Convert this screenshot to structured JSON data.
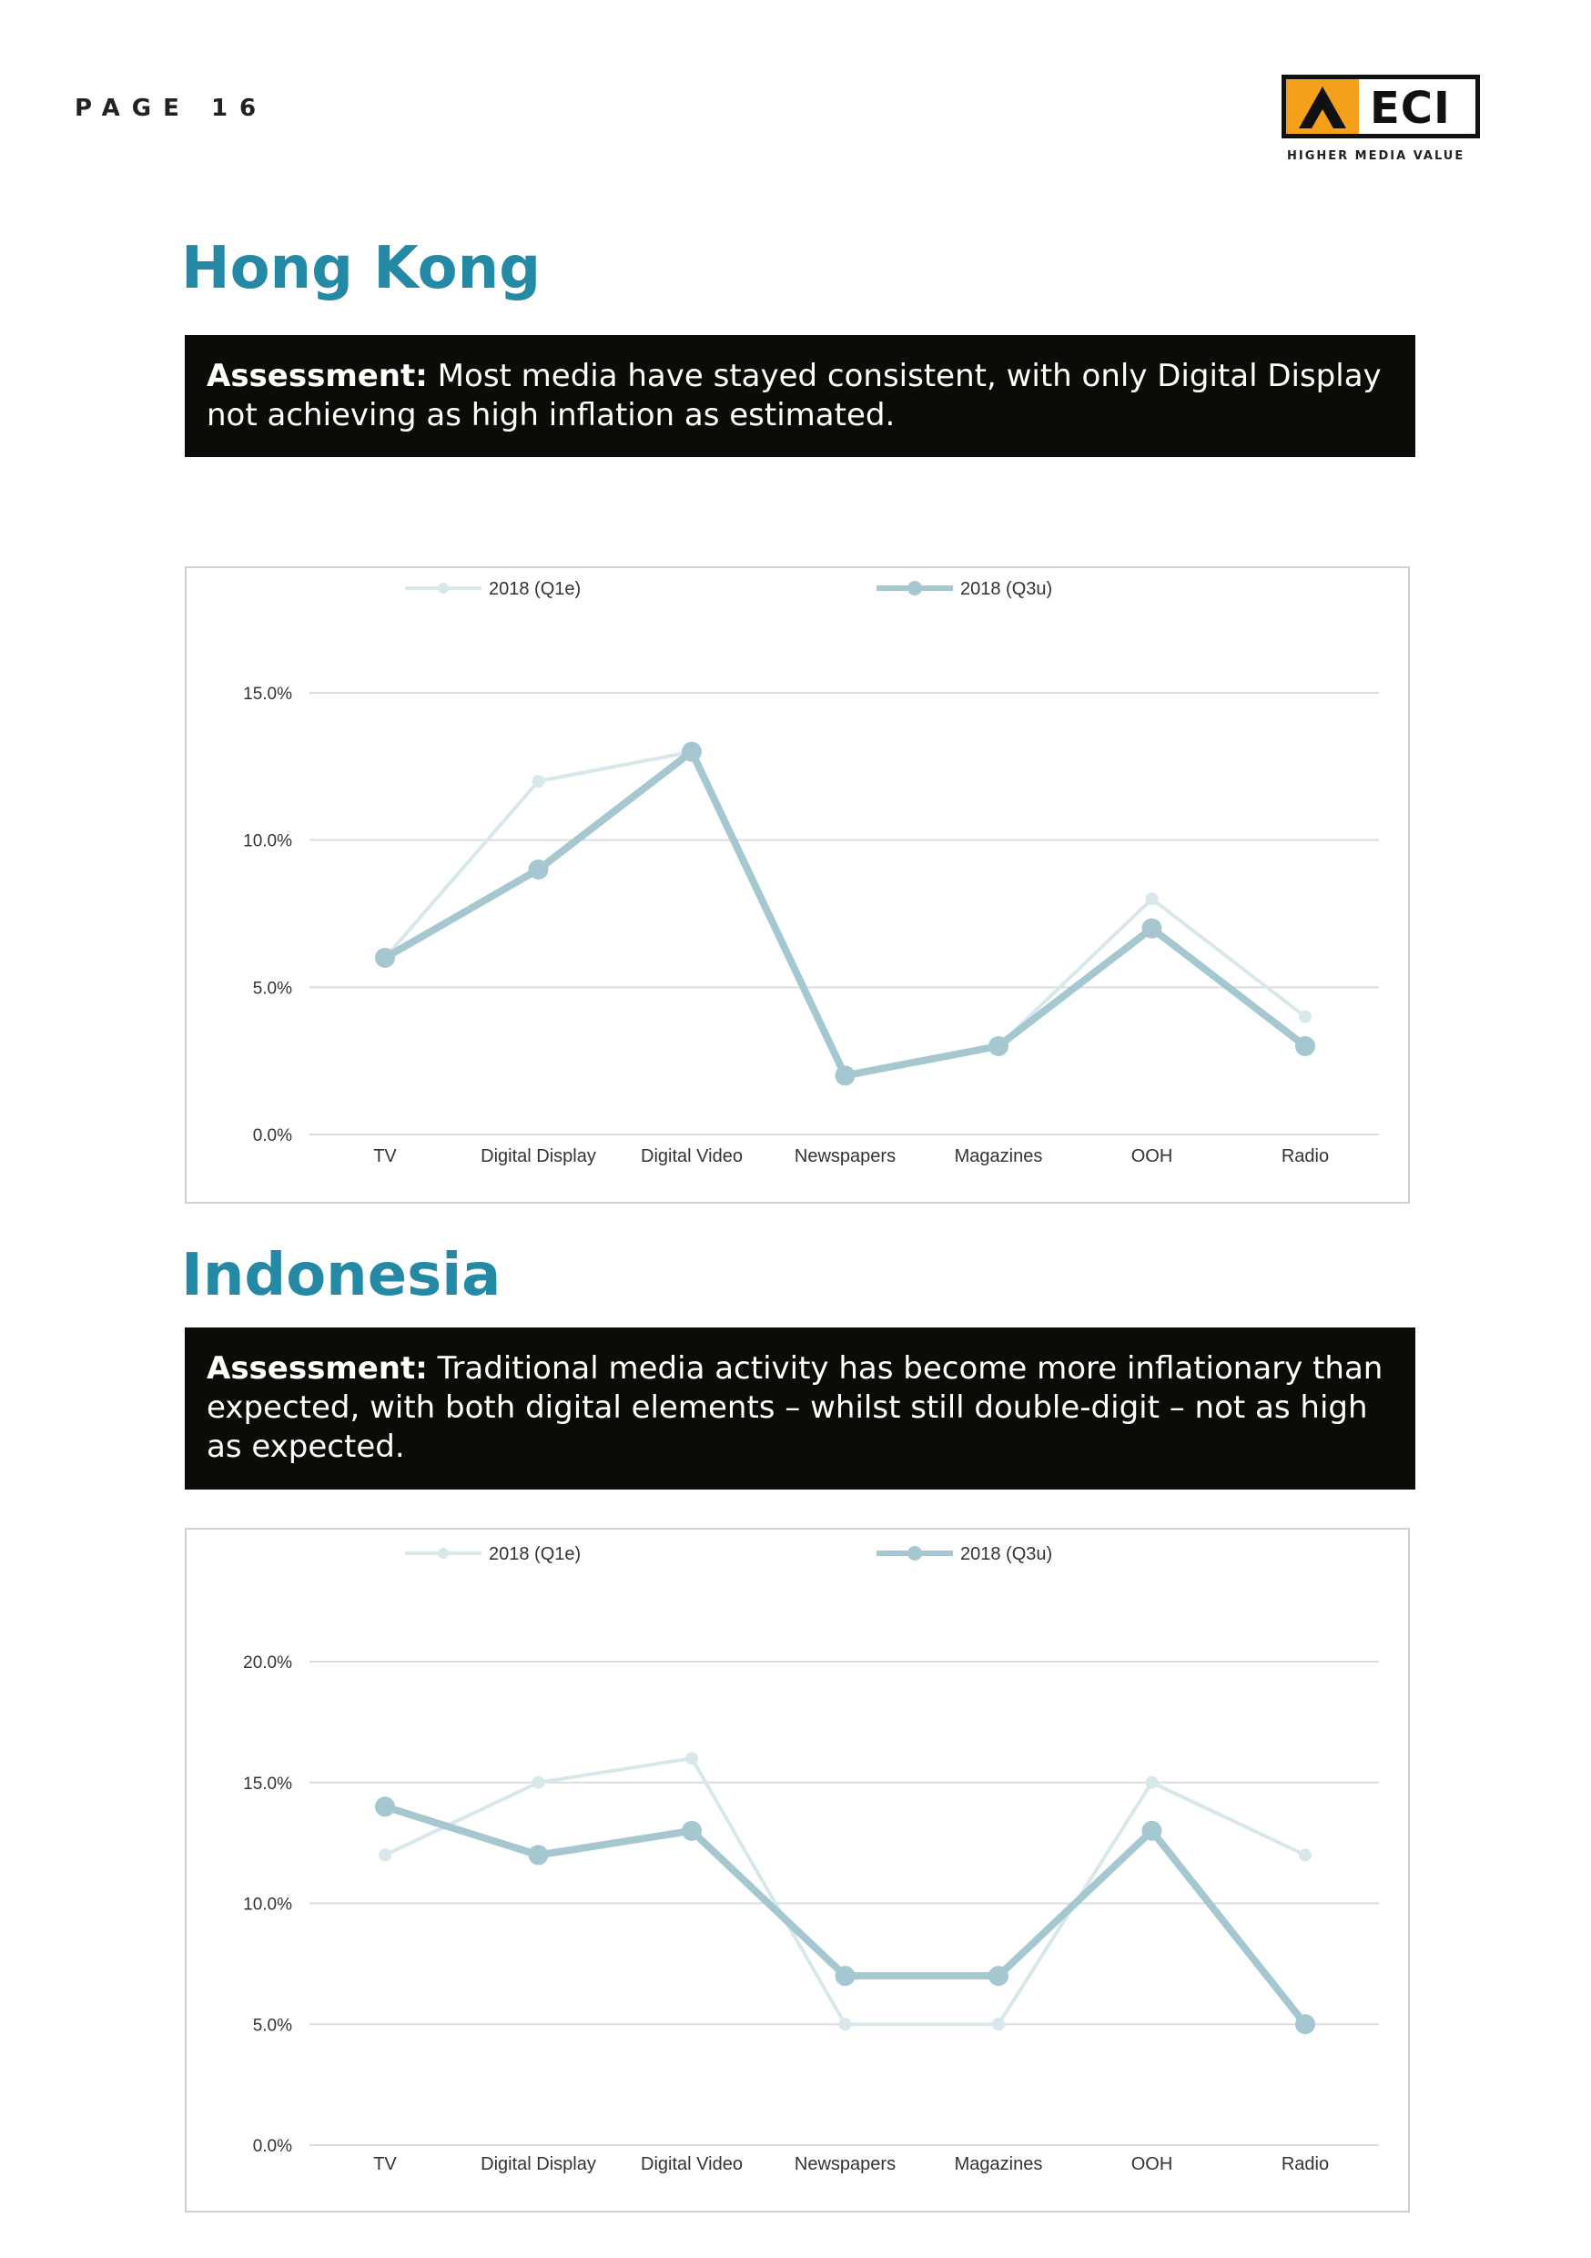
{
  "header": {
    "page_label": "PAGE 16",
    "logo_text": "ECI",
    "logo_tagline": "HIGHER MEDIA VALUE",
    "colors": {
      "logo_orange": "#f5a01a",
      "title_blue": "#2389a5"
    }
  },
  "sections": [
    {
      "title": "Hong Kong",
      "assessment_label": "Assessment:",
      "assessment_text": " Most media have stayed consistent, with only Digital Display not achieving as high inflation as estimated."
    },
    {
      "title": "Indonesia",
      "assessment_label": "Assessment:",
      "assessment_text": " Traditional media activity has become more inflationary than expected, with both digital elements – whilst still double-digit – not as high as expected."
    }
  ],
  "chart_data": [
    {
      "type": "line",
      "categories": [
        "TV",
        "Digital Display",
        "Digital Video",
        "Newspapers",
        "Magazines",
        "OOH",
        "Radio"
      ],
      "series": [
        {
          "name": "2018 (Q1e)",
          "values": [
            6,
            12,
            13,
            2,
            3,
            8,
            4
          ],
          "color": "#d8e7ea"
        },
        {
          "name": "2018 (Q3u)",
          "values": [
            6,
            9,
            13,
            2,
            3,
            7,
            3
          ],
          "color": "#a4c7d0"
        }
      ],
      "yticks": [
        "0.0%",
        "5.0%",
        "10.0%",
        "15.0%"
      ],
      "ylim": [
        0,
        15
      ],
      "grid": true,
      "legend": "top"
    },
    {
      "type": "line",
      "categories": [
        "TV",
        "Digital Display",
        "Digital Video",
        "Newspapers",
        "Magazines",
        "OOH",
        "Radio"
      ],
      "series": [
        {
          "name": "2018 (Q1e)",
          "values": [
            12,
            15,
            16,
            5,
            5,
            15,
            12
          ],
          "color": "#d8e7ea"
        },
        {
          "name": "2018 (Q3u)",
          "values": [
            14,
            12,
            13,
            7,
            7,
            13,
            5
          ],
          "color": "#a4c7d0"
        }
      ],
      "yticks": [
        "0.0%",
        "5.0%",
        "10.0%",
        "15.0%",
        "20.0%"
      ],
      "ylim": [
        0,
        20
      ],
      "grid": true,
      "legend": "top"
    }
  ]
}
